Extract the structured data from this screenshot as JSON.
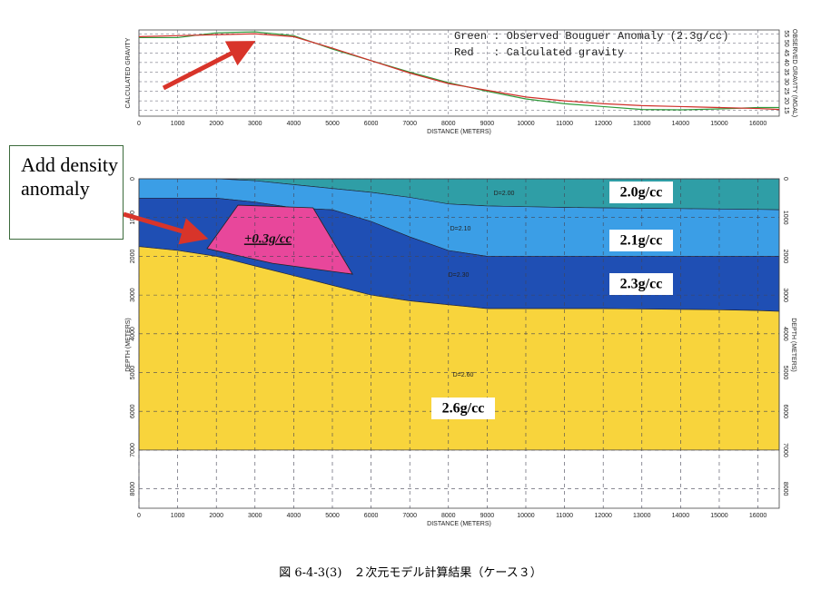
{
  "chart_data": [
    {
      "type": "line",
      "ylabel": "CALCULATED GRAVITY",
      "y2label": "OBSERVED GRAVITY (MGAL)",
      "xlabel": "DISTANCE (METERS)",
      "x": [
        0,
        1000,
        2000,
        3000,
        4000,
        5000,
        6000,
        7000,
        8000,
        9000,
        10000,
        11000,
        12000,
        13000,
        14000,
        15000,
        16000,
        16550
      ],
      "series": [
        {
          "name": "Green : Observed Bouguer Anomaly (2.3g/cc)",
          "color": "#2e9a3a",
          "values": [
            53,
            53,
            55.5,
            56,
            54,
            47,
            41,
            35,
            29.5,
            25,
            21,
            18.5,
            17,
            15.5,
            15.3,
            15.8,
            16.5,
            16.5
          ]
        },
        {
          "name": "Red   : Calculated gravity",
          "color": "#d0302a",
          "values": [
            53.5,
            54,
            54.5,
            55,
            53.5,
            47.5,
            41,
            34.5,
            29,
            25.5,
            22,
            20,
            18.5,
            17.5,
            17,
            16.5,
            16,
            15.5
          ]
        }
      ],
      "xlim": [
        0,
        16550
      ],
      "ylim": [
        12,
        57
      ],
      "xticks": [
        0,
        1000,
        2000,
        3000,
        4000,
        5000,
        6000,
        7000,
        8000,
        9000,
        10000,
        11000,
        12000,
        13000,
        14000,
        15000,
        16000
      ],
      "yticks": [
        15,
        20,
        25,
        30,
        35,
        40,
        45,
        50,
        55
      ],
      "grid": true
    },
    {
      "type": "section",
      "xlabel": "DISTANCE (METERS)",
      "ylabel": "DEPTH (METERS)",
      "x": [
        0,
        1000,
        2000,
        3000,
        4000,
        5000,
        6000,
        7000,
        8000,
        9000,
        10000,
        11000,
        12000,
        13000,
        14000,
        15000,
        16000,
        16550
      ],
      "layers": [
        {
          "name": "D=2.00",
          "label": "2.0g/cc",
          "color": "#2f9ea6",
          "values": [
            0,
            0,
            0,
            50,
            150,
            250,
            350,
            480,
            650,
            700,
            720,
            740,
            750,
            760,
            770,
            780,
            790,
            800
          ]
        },
        {
          "name": "D=2.10",
          "label": "2.1g/cc",
          "color": "#3b9ee6",
          "values": [
            500,
            500,
            500,
            600,
            750,
            800,
            1100,
            1500,
            1850,
            2000,
            2000,
            2000,
            2000,
            2000,
            2000,
            2000,
            2000,
            2000
          ]
        },
        {
          "name": "D=2.30",
          "label": "2.3g/cc",
          "color": "#1f4fb4",
          "values": [
            1750,
            1850,
            2000,
            2250,
            2500,
            2750,
            3000,
            3150,
            3250,
            3350,
            3350,
            3350,
            3350,
            3360,
            3370,
            3380,
            3400,
            3420
          ]
        },
        {
          "name": "D=2.60",
          "label": "2.6g/cc",
          "color": "#f8d43c",
          "values": [
            7000,
            7000,
            7000,
            7000,
            7000,
            7000,
            7000,
            7000,
            7000,
            7000,
            7000,
            7000,
            7000,
            7000,
            7000,
            7000,
            7000,
            7000
          ]
        }
      ],
      "anomaly": {
        "label": "+0.3g/cc",
        "color": "#e8479b",
        "x": [
          1760,
          2560,
          4500,
          5520,
          3450
        ],
        "values": [
          1800,
          680,
          750,
          2460,
          2180
        ]
      },
      "annotation": "Add density anomaly",
      "xlim": [
        0,
        16550
      ],
      "ylim": [
        0,
        8500
      ],
      "xticks": [
        0,
        1000,
        2000,
        3000,
        4000,
        5000,
        6000,
        7000,
        8000,
        9000,
        10000,
        11000,
        12000,
        13000,
        14000,
        15000,
        16000
      ],
      "yticks": [
        0,
        1000,
        2000,
        3000,
        4000,
        5000,
        6000,
        7000,
        8000
      ],
      "grid": true
    }
  ],
  "caption": "図 6-4-3(3)　２次元モデル計算結果（ケース３）"
}
